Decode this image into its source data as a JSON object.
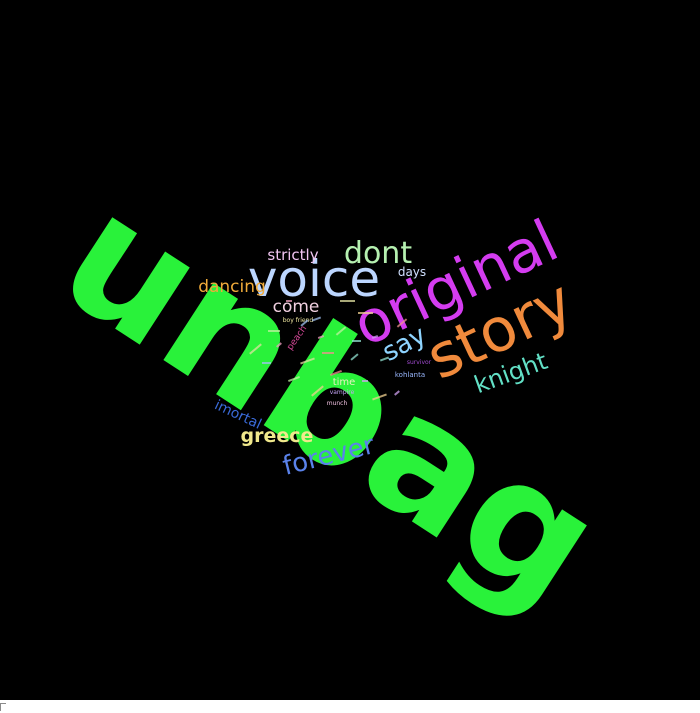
{
  "cloud": {
    "background": "#000000",
    "words": [
      {
        "text": "unbag",
        "color": "#29f23a",
        "rank": 1
      },
      {
        "text": "original",
        "color": "#d43cf0",
        "rank": 2
      },
      {
        "text": "story",
        "color": "#f08a3c",
        "rank": 3
      },
      {
        "text": "voice",
        "color": "#bcd6ff",
        "rank": 4
      },
      {
        "text": "dont",
        "color": "#b5f0b0",
        "rank": 5
      },
      {
        "text": "forever",
        "color": "#5a82ea",
        "rank": 6
      },
      {
        "text": "knight",
        "color": "#62e0c6",
        "rank": 7
      },
      {
        "text": "say",
        "color": "#8ed4ff",
        "rank": 8
      },
      {
        "text": "greece",
        "color": "#f0e88c",
        "rank": 9
      },
      {
        "text": "dancing",
        "color": "#f0ab3a",
        "rank": 10
      },
      {
        "text": "strictly",
        "color": "#f0c4f0",
        "rank": 11
      },
      {
        "text": "come",
        "color": "#f0d0e0",
        "rank": 12
      },
      {
        "text": "imortal",
        "color": "#3a6ad8",
        "rank": 13
      },
      {
        "text": "days",
        "color": "#d0e0ff",
        "rank": 14
      },
      {
        "text": "time",
        "color": "#e8f0c0",
        "rank": 15
      },
      {
        "text": "peach",
        "color": "#d84a9a",
        "rank": 16
      },
      {
        "text": "kohlanta",
        "color": "#9ab8ff",
        "rank": 17
      },
      {
        "text": "vampire",
        "color": "#c0a0f0",
        "rank": 18
      },
      {
        "text": "boy friend",
        "color": "#f0e8a0",
        "rank": 19
      },
      {
        "text": "survivor",
        "color": "#a04ad0",
        "rank": 20
      },
      {
        "text": "munch",
        "color": "#f0c0e0",
        "rank": 21
      }
    ]
  }
}
